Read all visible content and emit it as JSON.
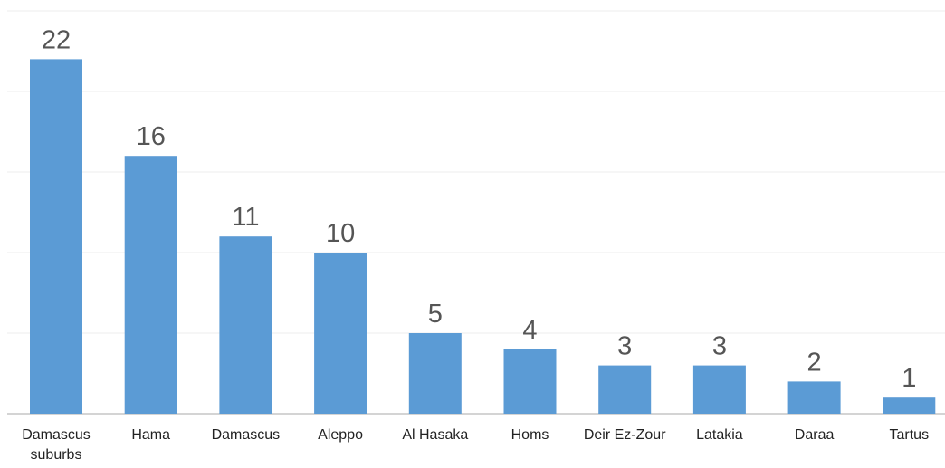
{
  "chart_data": {
    "type": "bar",
    "categories": [
      "Damascus suburbs",
      "Hama",
      "Damascus",
      "Aleppo",
      "Al Hasaka",
      "Homs",
      "Deir Ez-Zour",
      "Latakia",
      "Daraa",
      "Tartus"
    ],
    "values": [
      22,
      16,
      11,
      10,
      5,
      4,
      3,
      3,
      2,
      1
    ],
    "color": "#5b9bd5",
    "ylim": [
      0,
      25
    ],
    "yticks": [
      0,
      5,
      10,
      15,
      20,
      25
    ],
    "grid": true
  }
}
